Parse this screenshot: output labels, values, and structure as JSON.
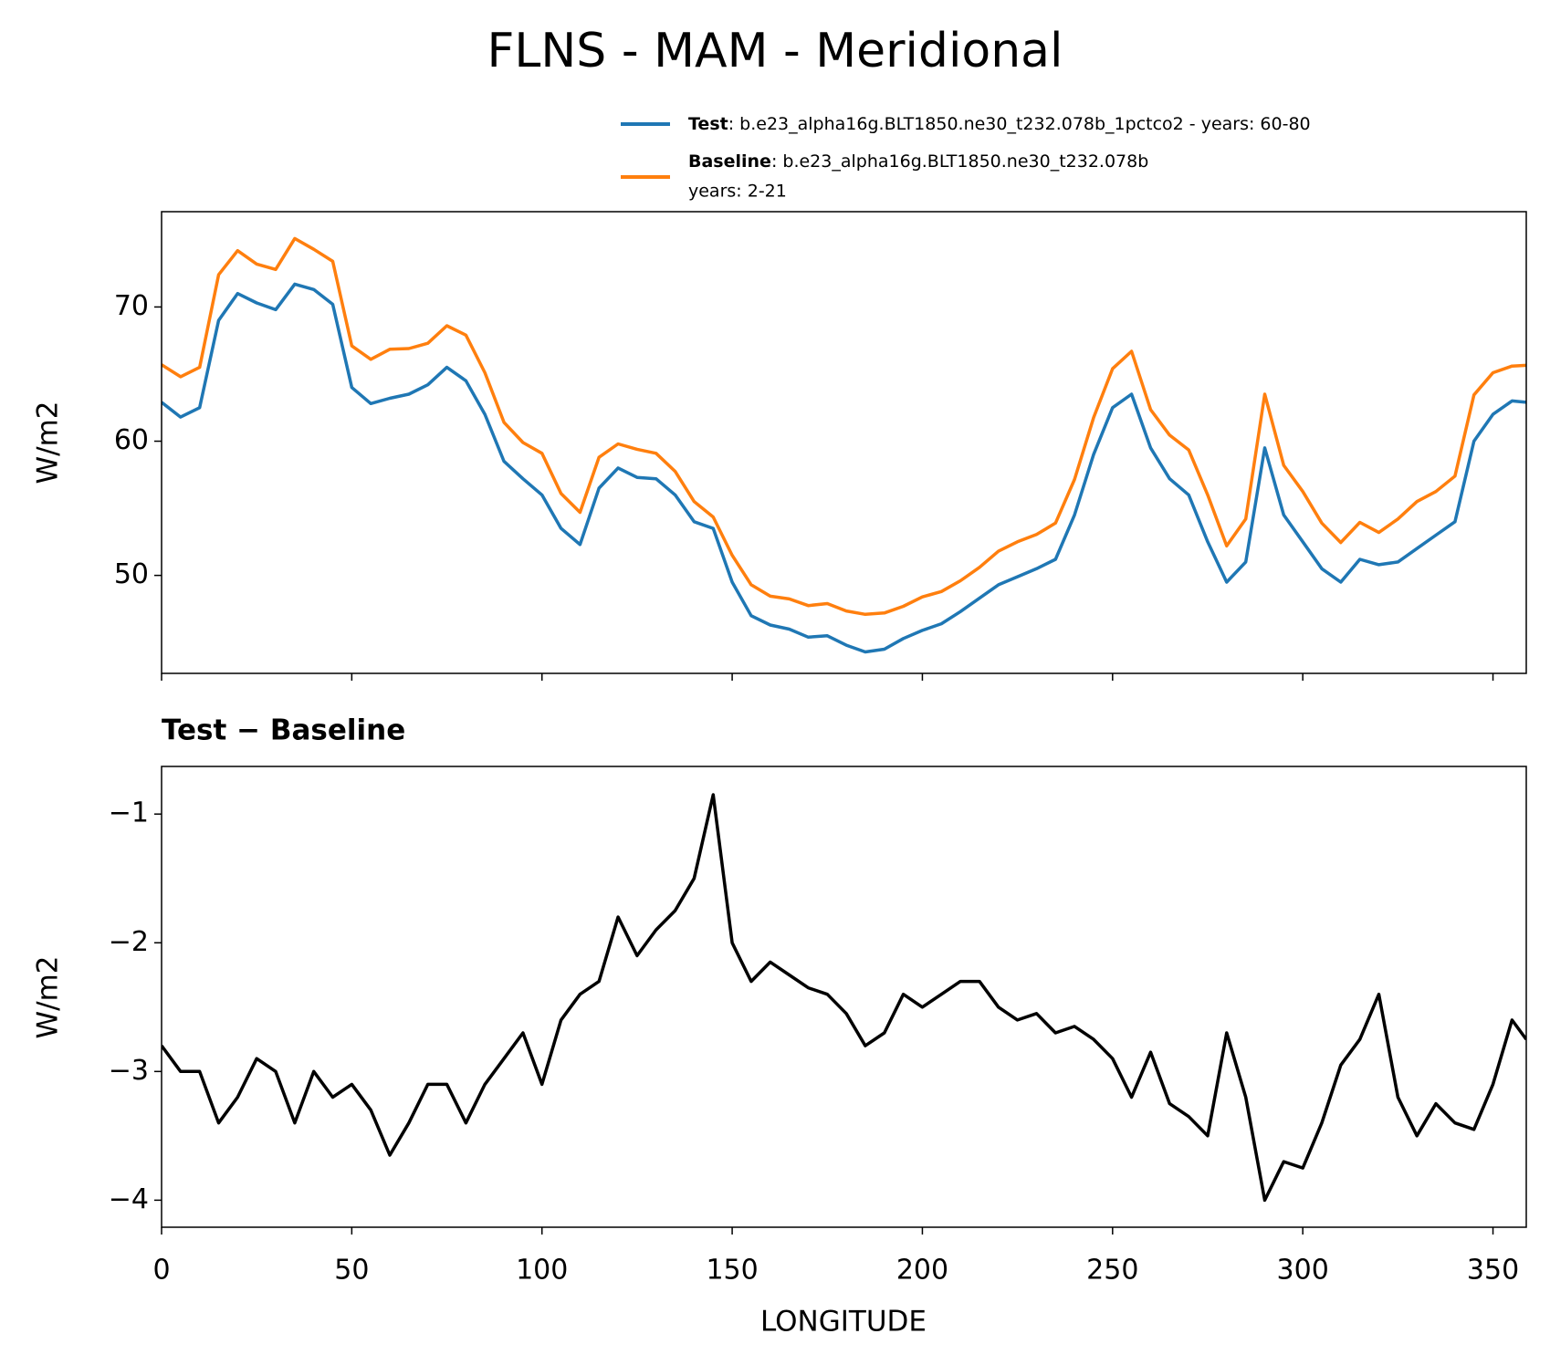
{
  "chart_data": [
    {
      "type": "line",
      "title": "FLNS - MAM - Meridional",
      "ylabel": "W/m2",
      "x": [
        0,
        5,
        10,
        15,
        20,
        25,
        30,
        35,
        40,
        45,
        50,
        55,
        60,
        65,
        70,
        75,
        80,
        85,
        90,
        95,
        100,
        105,
        110,
        115,
        120,
        125,
        130,
        135,
        140,
        145,
        150,
        155,
        160,
        165,
        170,
        175,
        180,
        185,
        190,
        195,
        200,
        205,
        210,
        215,
        220,
        225,
        230,
        235,
        240,
        245,
        250,
        255,
        260,
        265,
        270,
        275,
        280,
        285,
        290,
        295,
        300,
        305,
        310,
        315,
        320,
        325,
        330,
        335,
        340,
        345,
        350,
        355,
        358.75
      ],
      "series": [
        {
          "name": "Test",
          "detail": ": b.e23_alpha16g.BLT1850.ne30_t232.078b_1pctco2 - years: 60-80",
          "color": "#1f77b4",
          "values": [
            62.9,
            61.8,
            62.5,
            69,
            71,
            70.3,
            69.8,
            71.7,
            71.3,
            70.2,
            64,
            62.8,
            63.2,
            63.5,
            64.2,
            65.5,
            64.5,
            62,
            58.5,
            57.2,
            56,
            53.5,
            52.3,
            56.5,
            58,
            57.3,
            57.2,
            56,
            54,
            53.5,
            49.5,
            47,
            46.3,
            46,
            45.4,
            45.5,
            44.8,
            44.3,
            44.5,
            45.3,
            45.9,
            46.4,
            47.3,
            48.3,
            49.3,
            49.9,
            50.5,
            51.2,
            54.5,
            59,
            62.5,
            63.5,
            59.5,
            57.2,
            56,
            52.5,
            49.5,
            51,
            59.5,
            54.5,
            52.5,
            50.5,
            49.5,
            51.2,
            50.8,
            51,
            52,
            53,
            54,
            60,
            62,
            63,
            62.9
          ]
        },
        {
          "name": "Baseline",
          "detail": ": b.e23_alpha16g.BLT1850.ne30_t232.078b",
          "detail2": "years: 2-21",
          "color": "#ff7f0e",
          "values": [
            65.7,
            64.8,
            65.5,
            72.4,
            74.2,
            73.2,
            72.8,
            75.1,
            74.3,
            73.4,
            67.1,
            66.1,
            66.85,
            66.9,
            67.3,
            68.6,
            67.9,
            65.1,
            61.4,
            59.9,
            59.1,
            56.1,
            54.7,
            58.8,
            59.8,
            59.4,
            59.1,
            57.75,
            55.5,
            54.35,
            51.5,
            49.3,
            48.45,
            48.25,
            47.75,
            47.9,
            47.35,
            47.1,
            47.2,
            47.7,
            48.4,
            48.8,
            49.6,
            50.6,
            51.8,
            52.5,
            53.05,
            53.9,
            57.15,
            61.75,
            65.4,
            66.7,
            62.35,
            60.45,
            59.35,
            56,
            52.2,
            54.2,
            63.5,
            58.2,
            56.25,
            53.9,
            52.45,
            53.95,
            53.2,
            54.2,
            55.5,
            56.25,
            57.4,
            63.45,
            65.1,
            65.6,
            65.65
          ]
        }
      ],
      "xlim": [
        0,
        358.75
      ],
      "xticks": [
        0,
        50,
        100,
        150,
        200,
        250,
        300,
        350
      ],
      "ylim": [
        42.7,
        77.1
      ],
      "yticks": [
        50,
        60,
        70
      ]
    },
    {
      "type": "line",
      "title": "Test − Baseline",
      "ylabel": "W/m2",
      "xlabel": "LONGITUDE",
      "x": [
        0,
        5,
        10,
        15,
        20,
        25,
        30,
        35,
        40,
        45,
        50,
        55,
        60,
        65,
        70,
        75,
        80,
        85,
        90,
        95,
        100,
        105,
        110,
        115,
        120,
        125,
        130,
        135,
        140,
        145,
        150,
        155,
        160,
        165,
        170,
        175,
        180,
        185,
        190,
        195,
        200,
        205,
        210,
        215,
        220,
        225,
        230,
        235,
        240,
        245,
        250,
        255,
        260,
        265,
        270,
        275,
        280,
        285,
        290,
        295,
        300,
        305,
        310,
        315,
        320,
        325,
        330,
        335,
        340,
        345,
        350,
        355,
        358.75
      ],
      "color": "#000000",
      "values": [
        -2.8,
        -3.0,
        -3.0,
        -3.4,
        -3.2,
        -2.9,
        -3.0,
        -3.4,
        -3.0,
        -3.2,
        -3.1,
        -3.3,
        -3.65,
        -3.4,
        -3.1,
        -3.1,
        -3.4,
        -3.1,
        -2.9,
        -2.7,
        -3.1,
        -2.6,
        -2.4,
        -2.3,
        -1.8,
        -2.1,
        -1.9,
        -1.75,
        -1.5,
        -0.85,
        -2.0,
        -2.3,
        -2.15,
        -2.25,
        -2.35,
        -2.4,
        -2.55,
        -2.8,
        -2.7,
        -2.4,
        -2.5,
        -2.4,
        -2.3,
        -2.3,
        -2.5,
        -2.6,
        -2.55,
        -2.7,
        -2.65,
        -2.75,
        -2.9,
        -3.2,
        -2.85,
        -3.25,
        -3.35,
        -3.5,
        -2.7,
        -3.2,
        -4.0,
        -3.7,
        -3.75,
        -3.4,
        -2.95,
        -2.75,
        -2.4,
        -3.2,
        -3.5,
        -3.25,
        -3.4,
        -3.45,
        -3.1,
        -2.6,
        -2.75
      ],
      "xlim": [
        0,
        358.75
      ],
      "xticks": [
        0,
        50,
        100,
        150,
        200,
        250,
        300,
        350
      ],
      "ylim": [
        -4.21,
        -0.63
      ],
      "yticks": [
        {
          "value": -4,
          "label": "−4"
        },
        {
          "value": -3,
          "label": "−3"
        },
        {
          "value": -2,
          "label": "−2"
        },
        {
          "value": -1,
          "label": "−1"
        }
      ]
    }
  ]
}
